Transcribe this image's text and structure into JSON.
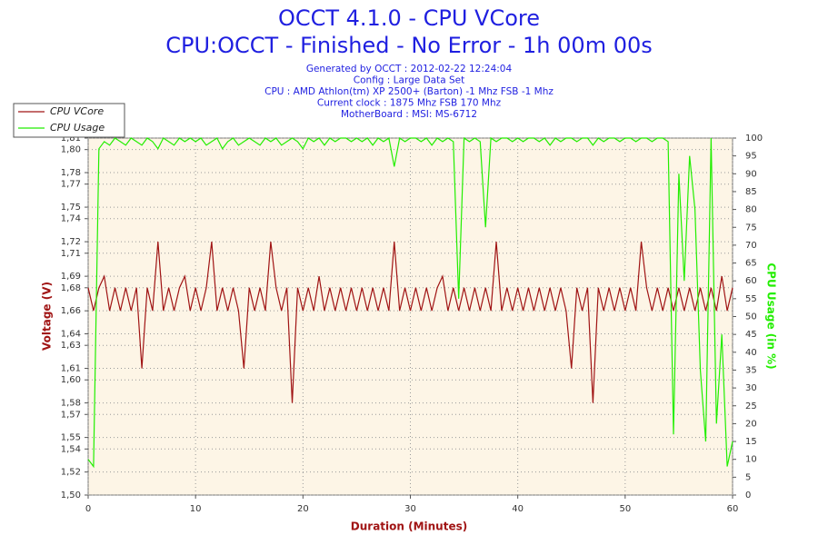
{
  "chart_data": {
    "type": "line",
    "title": "OCCT 4.1.0 - CPU VCore",
    "subtitle": "CPU:OCCT - Finished - No Error - 1h 00m 00s",
    "info_lines": [
      "Generated by OCCT : 2012-02-22 12:24:04",
      "Config : Large Data Set",
      "CPU : AMD Athlon(tm) XP 2500+ (Barton) -1 Mhz FSB -1 Mhz",
      "Current clock : 1875 Mhz FSB 170 Mhz",
      "MotherBoard : MSI: MS-6712"
    ],
    "x_label": "Duration (Minutes)",
    "y_label": "Voltage (V)",
    "y2_label": "CPU Usage (in %)",
    "x": [
      0,
      0.5,
      1,
      1.5,
      2,
      2.5,
      3,
      3.5,
      4,
      4.5,
      5,
      5.5,
      6,
      6.5,
      7,
      7.5,
      8,
      8.5,
      9,
      9.5,
      10,
      10.5,
      11,
      11.5,
      12,
      12.5,
      13,
      13.5,
      14,
      14.5,
      15,
      15.5,
      16,
      16.5,
      17,
      17.5,
      18,
      18.5,
      19,
      19.5,
      20,
      20.5,
      21,
      21.5,
      22,
      22.5,
      23,
      23.5,
      24,
      24.5,
      25,
      25.5,
      26,
      26.5,
      27,
      27.5,
      28,
      28.5,
      29,
      29.5,
      30,
      30.5,
      31,
      31.5,
      32,
      32.5,
      33,
      33.5,
      34,
      34.5,
      35,
      35.5,
      36,
      36.5,
      37,
      37.5,
      38,
      38.5,
      39,
      39.5,
      40,
      40.5,
      41,
      41.5,
      42,
      42.5,
      43,
      43.5,
      44,
      44.5,
      45,
      45.5,
      46,
      46.5,
      47,
      47.5,
      48,
      48.5,
      49,
      49.5,
      50,
      50.5,
      51,
      51.5,
      52,
      52.5,
      53,
      53.5,
      54,
      54.5,
      55,
      55.5,
      56,
      56.5,
      57,
      57.5,
      58,
      58.5,
      59,
      59.5,
      60
    ],
    "series": [
      {
        "name": "CPU VCore",
        "color": "#a01414",
        "axis": "y",
        "values": [
          1.68,
          1.66,
          1.68,
          1.69,
          1.66,
          1.68,
          1.66,
          1.68,
          1.66,
          1.68,
          1.61,
          1.68,
          1.66,
          1.72,
          1.66,
          1.68,
          1.66,
          1.68,
          1.69,
          1.66,
          1.68,
          1.66,
          1.68,
          1.72,
          1.66,
          1.68,
          1.66,
          1.68,
          1.66,
          1.61,
          1.68,
          1.66,
          1.68,
          1.66,
          1.72,
          1.68,
          1.66,
          1.68,
          1.58,
          1.68,
          1.66,
          1.68,
          1.66,
          1.69,
          1.66,
          1.68,
          1.66,
          1.68,
          1.66,
          1.68,
          1.66,
          1.68,
          1.66,
          1.68,
          1.66,
          1.68,
          1.66,
          1.72,
          1.66,
          1.68,
          1.66,
          1.68,
          1.66,
          1.68,
          1.66,
          1.68,
          1.69,
          1.66,
          1.68,
          1.66,
          1.68,
          1.66,
          1.68,
          1.66,
          1.68,
          1.66,
          1.72,
          1.66,
          1.68,
          1.66,
          1.68,
          1.66,
          1.68,
          1.66,
          1.68,
          1.66,
          1.68,
          1.66,
          1.68,
          1.66,
          1.61,
          1.68,
          1.66,
          1.68,
          1.58,
          1.68,
          1.66,
          1.68,
          1.66,
          1.68,
          1.66,
          1.68,
          1.66,
          1.72,
          1.68,
          1.66,
          1.68,
          1.66,
          1.68,
          1.66,
          1.68,
          1.66,
          1.68,
          1.66,
          1.68,
          1.66,
          1.68,
          1.66,
          1.69,
          1.66,
          1.68
        ]
      },
      {
        "name": "CPU Usage",
        "color": "#22ee00",
        "axis": "y2",
        "values": [
          10,
          8,
          97,
          99,
          98,
          100,
          99,
          98,
          100,
          99,
          98,
          100,
          99,
          97,
          100,
          99,
          98,
          100,
          99,
          100,
          99,
          100,
          98,
          99,
          100,
          97,
          99,
          100,
          98,
          99,
          100,
          99,
          98,
          100,
          99,
          100,
          98,
          99,
          100,
          99,
          97,
          100,
          99,
          100,
          98,
          100,
          99,
          100,
          100,
          99,
          100,
          99,
          100,
          98,
          100,
          99,
          100,
          92,
          100,
          99,
          100,
          100,
          99,
          100,
          98,
          100,
          99,
          100,
          99,
          55,
          100,
          99,
          100,
          99,
          75,
          100,
          99,
          100,
          100,
          99,
          100,
          99,
          100,
          100,
          99,
          100,
          98,
          100,
          99,
          100,
          100,
          99,
          100,
          100,
          98,
          100,
          99,
          100,
          100,
          99,
          100,
          100,
          99,
          100,
          100,
          99,
          100,
          100,
          99,
          17,
          90,
          60,
          95,
          80,
          35,
          15,
          100,
          20,
          45,
          8,
          15
        ]
      }
    ],
    "xlim": [
      0,
      60
    ],
    "xticks": [
      0,
      10,
      20,
      30,
      40,
      50,
      60
    ],
    "ylim": [
      1.5,
      1.81
    ],
    "yticks": [
      {
        "value": 1.5,
        "label": "1,50"
      },
      {
        "value": 1.52,
        "label": "1,52"
      },
      {
        "value": 1.54,
        "label": "1,54"
      },
      {
        "value": 1.55,
        "label": "1,55"
      },
      {
        "value": 1.57,
        "label": "1,57"
      },
      {
        "value": 1.58,
        "label": "1,58"
      },
      {
        "value": 1.6,
        "label": "1,60"
      },
      {
        "value": 1.61,
        "label": "1,61"
      },
      {
        "value": 1.63,
        "label": "1,63"
      },
      {
        "value": 1.64,
        "label": "1,64"
      },
      {
        "value": 1.66,
        "label": "1,66"
      },
      {
        "value": 1.68,
        "label": "1,68"
      },
      {
        "value": 1.69,
        "label": "1,69"
      },
      {
        "value": 1.71,
        "label": "1,71"
      },
      {
        "value": 1.72,
        "label": "1,72"
      },
      {
        "value": 1.74,
        "label": "1,74"
      },
      {
        "value": 1.75,
        "label": "1,75"
      },
      {
        "value": 1.77,
        "label": "1,77"
      },
      {
        "value": 1.78,
        "label": "1,78"
      },
      {
        "value": 1.8,
        "label": "1,80"
      },
      {
        "value": 1.81,
        "label": "1,81"
      }
    ],
    "y2lim": [
      0,
      100
    ],
    "y2ticks": [
      0,
      5,
      10,
      15,
      20,
      25,
      30,
      35,
      40,
      45,
      50,
      55,
      60,
      65,
      70,
      75,
      80,
      85,
      90,
      95,
      100
    ],
    "grid": true,
    "legend": "top-left"
  }
}
